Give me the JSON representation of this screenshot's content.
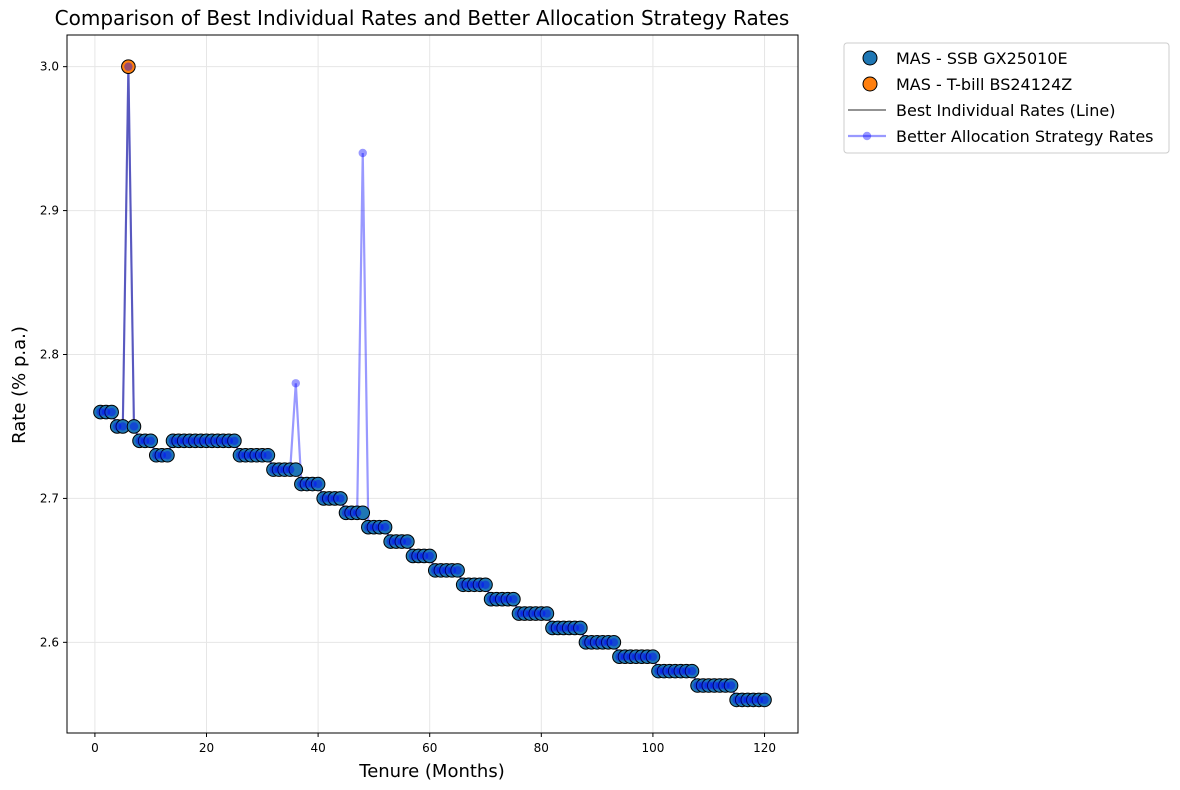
{
  "chart_data": {
    "type": "scatter",
    "title": "Comparison of Best Individual Rates and Better Allocation Strategy Rates",
    "xlabel": "Tenure (Months)",
    "ylabel": "Rate (% p.a.)",
    "xlim": [
      -5,
      126
    ],
    "ylim": [
      2.537,
      3.022
    ],
    "xticks": [
      0,
      20,
      40,
      60,
      80,
      100,
      120
    ],
    "yticks": [
      2.6,
      2.7,
      2.8,
      2.9,
      3.0
    ],
    "xtick_labels": [
      "0",
      "20",
      "40",
      "60",
      "80",
      "100",
      "120"
    ],
    "ytick_labels": [
      "2.6",
      "2.7",
      "2.8",
      "2.9",
      "3.0"
    ],
    "grid": true,
    "legend_position": "outside-top-right",
    "colors": {
      "ssb": "#1f77b4",
      "tbill": "#ff7f0e",
      "best_line": "#808080",
      "allocation": "#0000ff",
      "axes": "#000000",
      "grid": "#e6e6e6"
    },
    "series": [
      {
        "name": "MAS - SSB GX25010E",
        "kind": "scatter",
        "points": [
          [
            1,
            2.76
          ],
          [
            2,
            2.76
          ],
          [
            3,
            2.76
          ],
          [
            4,
            2.75
          ],
          [
            5,
            2.75
          ],
          [
            7,
            2.75
          ],
          [
            8,
            2.74
          ],
          [
            9,
            2.74
          ],
          [
            10,
            2.74
          ],
          [
            11,
            2.73
          ],
          [
            12,
            2.73
          ],
          [
            13,
            2.73
          ],
          [
            14,
            2.74
          ],
          [
            15,
            2.74
          ],
          [
            16,
            2.74
          ],
          [
            17,
            2.74
          ],
          [
            18,
            2.74
          ],
          [
            19,
            2.74
          ],
          [
            20,
            2.74
          ],
          [
            21,
            2.74
          ],
          [
            22,
            2.74
          ],
          [
            23,
            2.74
          ],
          [
            24,
            2.74
          ],
          [
            25,
            2.74
          ],
          [
            26,
            2.73
          ],
          [
            27,
            2.73
          ],
          [
            28,
            2.73
          ],
          [
            29,
            2.73
          ],
          [
            30,
            2.73
          ],
          [
            31,
            2.73
          ],
          [
            32,
            2.72
          ],
          [
            33,
            2.72
          ],
          [
            34,
            2.72
          ],
          [
            35,
            2.72
          ],
          [
            36,
            2.72
          ],
          [
            37,
            2.71
          ],
          [
            38,
            2.71
          ],
          [
            39,
            2.71
          ],
          [
            40,
            2.71
          ],
          [
            41,
            2.7
          ],
          [
            42,
            2.7
          ],
          [
            43,
            2.7
          ],
          [
            44,
            2.7
          ],
          [
            45,
            2.69
          ],
          [
            46,
            2.69
          ],
          [
            47,
            2.69
          ],
          [
            48,
            2.69
          ],
          [
            49,
            2.68
          ],
          [
            50,
            2.68
          ],
          [
            51,
            2.68
          ],
          [
            52,
            2.68
          ],
          [
            53,
            2.67
          ],
          [
            54,
            2.67
          ],
          [
            55,
            2.67
          ],
          [
            56,
            2.67
          ],
          [
            57,
            2.66
          ],
          [
            58,
            2.66
          ],
          [
            59,
            2.66
          ],
          [
            60,
            2.66
          ],
          [
            61,
            2.65
          ],
          [
            62,
            2.65
          ],
          [
            63,
            2.65
          ],
          [
            64,
            2.65
          ],
          [
            65,
            2.65
          ],
          [
            66,
            2.64
          ],
          [
            67,
            2.64
          ],
          [
            68,
            2.64
          ],
          [
            69,
            2.64
          ],
          [
            70,
            2.64
          ],
          [
            71,
            2.63
          ],
          [
            72,
            2.63
          ],
          [
            73,
            2.63
          ],
          [
            74,
            2.63
          ],
          [
            75,
            2.63
          ],
          [
            76,
            2.62
          ],
          [
            77,
            2.62
          ],
          [
            78,
            2.62
          ],
          [
            79,
            2.62
          ],
          [
            80,
            2.62
          ],
          [
            81,
            2.62
          ],
          [
            82,
            2.61
          ],
          [
            83,
            2.61
          ],
          [
            84,
            2.61
          ],
          [
            85,
            2.61
          ],
          [
            86,
            2.61
          ],
          [
            87,
            2.61
          ],
          [
            88,
            2.6
          ],
          [
            89,
            2.6
          ],
          [
            90,
            2.6
          ],
          [
            91,
            2.6
          ],
          [
            92,
            2.6
          ],
          [
            93,
            2.6
          ],
          [
            94,
            2.59
          ],
          [
            95,
            2.59
          ],
          [
            96,
            2.59
          ],
          [
            97,
            2.59
          ],
          [
            98,
            2.59
          ],
          [
            99,
            2.59
          ],
          [
            100,
            2.59
          ],
          [
            101,
            2.58
          ],
          [
            102,
            2.58
          ],
          [
            103,
            2.58
          ],
          [
            104,
            2.58
          ],
          [
            105,
            2.58
          ],
          [
            106,
            2.58
          ],
          [
            107,
            2.58
          ],
          [
            108,
            2.57
          ],
          [
            109,
            2.57
          ],
          [
            110,
            2.57
          ],
          [
            111,
            2.57
          ],
          [
            112,
            2.57
          ],
          [
            113,
            2.57
          ],
          [
            114,
            2.57
          ],
          [
            115,
            2.56
          ],
          [
            116,
            2.56
          ],
          [
            117,
            2.56
          ],
          [
            118,
            2.56
          ],
          [
            119,
            2.56
          ],
          [
            120,
            2.56
          ]
        ]
      },
      {
        "name": "MAS - T-bill BS24124Z",
        "kind": "scatter",
        "points": [
          [
            6,
            3.0
          ]
        ]
      },
      {
        "name": "Best Individual Rates (Line)",
        "kind": "line",
        "x_from_series": "all",
        "y_overrides": {}
      },
      {
        "name": "Better Allocation Strategy Rates",
        "kind": "line-marker",
        "y_overrides": {
          "36": 2.78,
          "48": 2.94
        }
      }
    ]
  }
}
